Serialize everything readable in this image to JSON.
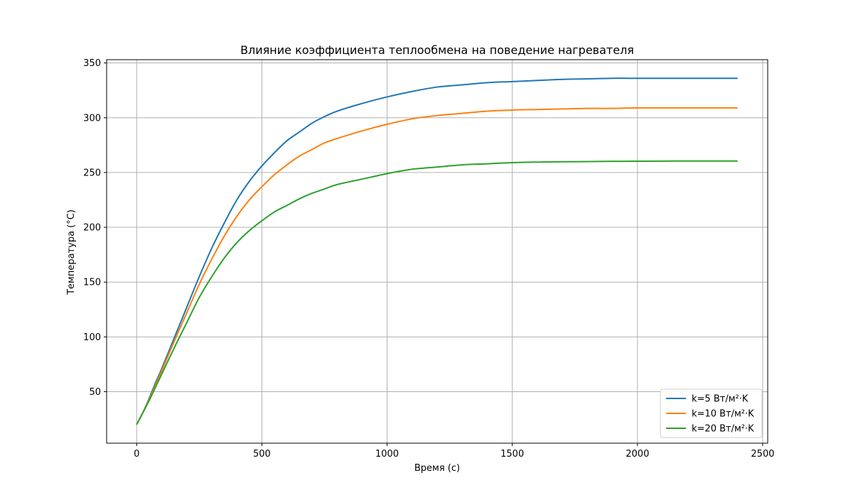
{
  "chart_data": {
    "type": "line",
    "title": "Влияние коэффициента теплообмена на поведение нагревателя",
    "xlabel": "Время (с)",
    "ylabel": "Температура (°C)",
    "xlim": [
      -120,
      2520
    ],
    "ylim": [
      3,
      353
    ],
    "xticks": [
      0,
      500,
      1000,
      1500,
      2000,
      2500
    ],
    "yticks": [
      50,
      100,
      150,
      200,
      250,
      300,
      350
    ],
    "grid": true,
    "legend_position": "lower-right",
    "x": [
      0,
      25,
      50,
      75,
      100,
      150,
      200,
      250,
      300,
      350,
      400,
      450,
      500,
      550,
      600,
      650,
      700,
      750,
      800,
      900,
      1000,
      1100,
      1200,
      1300,
      1400,
      1500,
      1600,
      1700,
      1800,
      1900,
      2000,
      2100,
      2200,
      2300,
      2400
    ],
    "series": [
      {
        "name": "k=5 Вт/м²·K",
        "color": "#1f77b4",
        "values": [
          20,
          31,
          44,
          58,
          71,
          99,
          127,
          155,
          181,
          204,
          225,
          242,
          256,
          268,
          279,
          287,
          295,
          301,
          306,
          313,
          319,
          324,
          328,
          330,
          332,
          333,
          334,
          335,
          335.5,
          336,
          336,
          336,
          336,
          336,
          336
        ]
      },
      {
        "name": "k=10 Вт/м²·K",
        "color": "#ff7f0e",
        "values": [
          20,
          31,
          43,
          56,
          69,
          96,
          122,
          148,
          171,
          192,
          210,
          225,
          237,
          248,
          257,
          265,
          271,
          277,
          281,
          288,
          294,
          299,
          302,
          304,
          306,
          307,
          307.5,
          308,
          308.5,
          308.5,
          309,
          309,
          309,
          309,
          309
        ]
      },
      {
        "name": "k=20 Вт/м²·K",
        "color": "#2ca02c",
        "values": [
          20,
          31,
          42,
          54,
          66,
          90,
          113,
          136,
          155,
          172,
          186,
          197,
          206,
          214,
          220,
          226,
          231,
          235,
          239,
          244,
          249,
          253,
          255,
          257,
          258,
          259,
          259.5,
          259.8,
          260,
          260.2,
          260.3,
          260.4,
          260.5,
          260.5,
          260.5
        ]
      }
    ]
  }
}
